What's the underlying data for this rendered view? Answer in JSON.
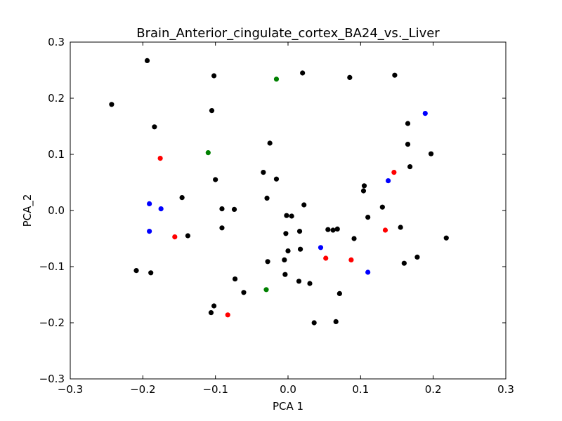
{
  "chart_data": {
    "type": "scatter",
    "title": "Brain_Anterior_cingulate_cortex_BA24_vs._Liver",
    "xlabel": "PCA 1",
    "ylabel": "PCA_2",
    "xlim": [
      -0.3,
      0.3
    ],
    "ylim": [
      -0.3,
      0.3
    ],
    "xticks": [
      -0.3,
      -0.2,
      -0.1,
      0.0,
      0.1,
      0.2,
      0.3
    ],
    "yticks": [
      -0.3,
      -0.2,
      -0.1,
      0.0,
      0.1,
      0.2,
      0.3
    ],
    "xtick_labels": [
      "−0.3",
      "−0.2",
      "−0.1",
      "0.0",
      "0.1",
      "0.2",
      "0.3"
    ],
    "ytick_labels": [
      "−0.3",
      "−0.2",
      "−0.1",
      "0.0",
      "0.1",
      "0.2",
      "0.3"
    ],
    "grid": false,
    "series": [
      {
        "color": "#000000",
        "points": [
          [
            -0.194,
            0.267
          ],
          [
            -0.102,
            0.24
          ],
          [
            0.02,
            0.245
          ],
          [
            0.085,
            0.237
          ],
          [
            0.147,
            0.241
          ],
          [
            -0.243,
            0.189
          ],
          [
            -0.105,
            0.178
          ],
          [
            -0.184,
            0.149
          ],
          [
            0.165,
            0.155
          ],
          [
            -0.025,
            0.12
          ],
          [
            0.165,
            0.118
          ],
          [
            0.197,
            0.101
          ],
          [
            0.168,
            0.078
          ],
          [
            -0.034,
            0.068
          ],
          [
            -0.1,
            0.055
          ],
          [
            -0.016,
            0.056
          ],
          [
            0.105,
            0.044
          ],
          [
            0.104,
            0.035
          ],
          [
            -0.146,
            0.023
          ],
          [
            -0.029,
            0.022
          ],
          [
            0.022,
            0.01
          ],
          [
            -0.091,
            0.003
          ],
          [
            -0.074,
            0.002
          ],
          [
            0.13,
            0.006
          ],
          [
            -0.002,
            -0.009
          ],
          [
            0.005,
            -0.01
          ],
          [
            0.11,
            -0.012
          ],
          [
            -0.091,
            -0.031
          ],
          [
            0.155,
            -0.03
          ],
          [
            0.016,
            -0.037
          ],
          [
            0.055,
            -0.034
          ],
          [
            0.062,
            -0.035
          ],
          [
            0.068,
            -0.033
          ],
          [
            -0.003,
            -0.041
          ],
          [
            -0.138,
            -0.045
          ],
          [
            0.091,
            -0.05
          ],
          [
            0.218,
            -0.049
          ],
          [
            0.017,
            -0.069
          ],
          [
            0.0,
            -0.072
          ],
          [
            -0.005,
            -0.088
          ],
          [
            -0.028,
            -0.091
          ],
          [
            0.178,
            -0.083
          ],
          [
            0.16,
            -0.094
          ],
          [
            -0.209,
            -0.107
          ],
          [
            -0.189,
            -0.111
          ],
          [
            -0.004,
            -0.114
          ],
          [
            -0.073,
            -0.122
          ],
          [
            0.015,
            -0.126
          ],
          [
            0.03,
            -0.13
          ],
          [
            -0.061,
            -0.146
          ],
          [
            0.071,
            -0.148
          ],
          [
            -0.102,
            -0.17
          ],
          [
            -0.106,
            -0.182
          ],
          [
            0.036,
            -0.2
          ],
          [
            0.066,
            -0.198
          ]
        ]
      },
      {
        "color": "#0000ff",
        "points": [
          [
            0.189,
            0.173
          ],
          [
            -0.191,
            0.012
          ],
          [
            -0.175,
            0.003
          ],
          [
            -0.191,
            -0.037
          ],
          [
            0.138,
            0.053
          ],
          [
            0.045,
            -0.066
          ],
          [
            0.11,
            -0.11
          ]
        ]
      },
      {
        "color": "#ff0000",
        "points": [
          [
            -0.176,
            0.093
          ],
          [
            -0.156,
            -0.047
          ],
          [
            0.146,
            0.068
          ],
          [
            0.134,
            -0.035
          ],
          [
            0.052,
            -0.085
          ],
          [
            0.087,
            -0.088
          ],
          [
            -0.083,
            -0.186
          ]
        ]
      },
      {
        "color": "#008000",
        "points": [
          [
            -0.016,
            0.234
          ],
          [
            -0.11,
            0.103
          ],
          [
            -0.03,
            -0.141
          ]
        ]
      }
    ]
  }
}
